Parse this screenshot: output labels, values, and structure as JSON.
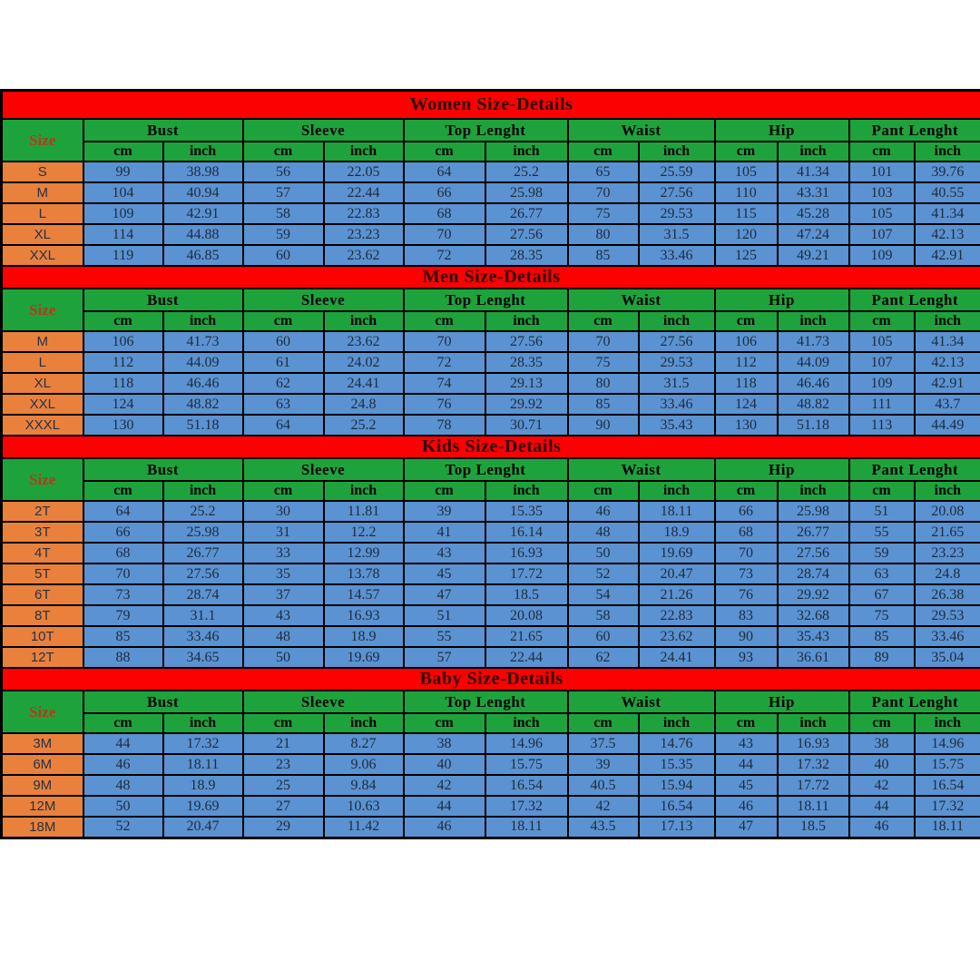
{
  "colors": {
    "band_red": "#fb0102",
    "header_green": "#1ea33c",
    "cell_blue": "#5b92d2",
    "label_orange": "#e9813d",
    "border_black": "#000000",
    "title_text": "#2e0400",
    "size_word_text": "#b03c1c",
    "value_text": "#1d2c3c"
  },
  "columns": {
    "size_label": "Size",
    "groups": [
      "Bust",
      "Sleeve",
      "Top Lenght",
      "Waist",
      "Hip",
      "Pant Lenght"
    ],
    "units": [
      "cm",
      "inch"
    ]
  },
  "chart_data": [
    {
      "type": "table",
      "id": "women",
      "title": "Women Size-Details",
      "column_groups": [
        "Bust",
        "Sleeve",
        "Top Lenght",
        "Waist",
        "Hip",
        "Pant Lenght"
      ],
      "unit_subcolumns": [
        "cm",
        "inch"
      ],
      "rows": [
        {
          "size": "S",
          "values": [
            "99",
            "38.98",
            "56",
            "22.05",
            "64",
            "25.2",
            "65",
            "25.59",
            "105",
            "41.34",
            "101",
            "39.76"
          ]
        },
        {
          "size": "M",
          "values": [
            "104",
            "40.94",
            "57",
            "22.44",
            "66",
            "25.98",
            "70",
            "27.56",
            "110",
            "43.31",
            "103",
            "40.55"
          ]
        },
        {
          "size": "L",
          "values": [
            "109",
            "42.91",
            "58",
            "22.83",
            "68",
            "26.77",
            "75",
            "29.53",
            "115",
            "45.28",
            "105",
            "41.34"
          ]
        },
        {
          "size": "XL",
          "values": [
            "114",
            "44.88",
            "59",
            "23.23",
            "70",
            "27.56",
            "80",
            "31.5",
            "120",
            "47.24",
            "107",
            "42.13"
          ]
        },
        {
          "size": "XXL",
          "values": [
            "119",
            "46.85",
            "60",
            "23.62",
            "72",
            "28.35",
            "85",
            "33.46",
            "125",
            "49.21",
            "109",
            "42.91"
          ]
        }
      ]
    },
    {
      "type": "table",
      "id": "men",
      "title": "Men Size-Details",
      "column_groups": [
        "Bust",
        "Sleeve",
        "Top Lenght",
        "Waist",
        "Hip",
        "Pant Lenght"
      ],
      "unit_subcolumns": [
        "cm",
        "inch"
      ],
      "rows": [
        {
          "size": "M",
          "values": [
            "106",
            "41.73",
            "60",
            "23.62",
            "70",
            "27.56",
            "70",
            "27.56",
            "106",
            "41.73",
            "105",
            "41.34"
          ]
        },
        {
          "size": "L",
          "values": [
            "112",
            "44.09",
            "61",
            "24.02",
            "72",
            "28.35",
            "75",
            "29.53",
            "112",
            "44.09",
            "107",
            "42.13"
          ]
        },
        {
          "size": "XL",
          "values": [
            "118",
            "46.46",
            "62",
            "24.41",
            "74",
            "29.13",
            "80",
            "31.5",
            "118",
            "46.46",
            "109",
            "42.91"
          ]
        },
        {
          "size": "XXL",
          "values": [
            "124",
            "48.82",
            "63",
            "24.8",
            "76",
            "29.92",
            "85",
            "33.46",
            "124",
            "48.82",
            "111",
            "43.7"
          ]
        },
        {
          "size": "XXXL",
          "values": [
            "130",
            "51.18",
            "64",
            "25.2",
            "78",
            "30.71",
            "90",
            "35.43",
            "130",
            "51.18",
            "113",
            "44.49"
          ]
        }
      ]
    },
    {
      "type": "table",
      "id": "kids",
      "title": "Kids Size-Details",
      "column_groups": [
        "Bust",
        "Sleeve",
        "Top Lenght",
        "Waist",
        "Hip",
        "Pant Lenght"
      ],
      "unit_subcolumns": [
        "cm",
        "inch"
      ],
      "rows": [
        {
          "size": "2T",
          "values": [
            "64",
            "25.2",
            "30",
            "11.81",
            "39",
            "15.35",
            "46",
            "18.11",
            "66",
            "25.98",
            "51",
            "20.08"
          ]
        },
        {
          "size": "3T",
          "values": [
            "66",
            "25.98",
            "31",
            "12.2",
            "41",
            "16.14",
            "48",
            "18.9",
            "68",
            "26.77",
            "55",
            "21.65"
          ]
        },
        {
          "size": "4T",
          "values": [
            "68",
            "26.77",
            "33",
            "12.99",
            "43",
            "16.93",
            "50",
            "19.69",
            "70",
            "27.56",
            "59",
            "23.23"
          ]
        },
        {
          "size": "5T",
          "values": [
            "70",
            "27.56",
            "35",
            "13.78",
            "45",
            "17.72",
            "52",
            "20.47",
            "73",
            "28.74",
            "63",
            "24.8"
          ]
        },
        {
          "size": "6T",
          "values": [
            "73",
            "28.74",
            "37",
            "14.57",
            "47",
            "18.5",
            "54",
            "21.26",
            "76",
            "29.92",
            "67",
            "26.38"
          ]
        },
        {
          "size": "8T",
          "values": [
            "79",
            "31.1",
            "43",
            "16.93",
            "51",
            "20.08",
            "58",
            "22.83",
            "83",
            "32.68",
            "75",
            "29.53"
          ]
        },
        {
          "size": "10T",
          "values": [
            "85",
            "33.46",
            "48",
            "18.9",
            "55",
            "21.65",
            "60",
            "23.62",
            "90",
            "35.43",
            "85",
            "33.46"
          ]
        },
        {
          "size": "12T",
          "values": [
            "88",
            "34.65",
            "50",
            "19.69",
            "57",
            "22.44",
            "62",
            "24.41",
            "93",
            "36.61",
            "89",
            "35.04"
          ]
        }
      ]
    },
    {
      "type": "table",
      "id": "baby",
      "title": "Baby Size-Details",
      "column_groups": [
        "Bust",
        "Sleeve",
        "Top Lenght",
        "Waist",
        "Hip",
        "Pant Lenght"
      ],
      "unit_subcolumns": [
        "cm",
        "inch"
      ],
      "rows": [
        {
          "size": "3M",
          "values": [
            "44",
            "17.32",
            "21",
            "8.27",
            "38",
            "14.96",
            "37.5",
            "14.76",
            "43",
            "16.93",
            "38",
            "14.96"
          ]
        },
        {
          "size": "6M",
          "values": [
            "46",
            "18.11",
            "23",
            "9.06",
            "40",
            "15.75",
            "39",
            "15.35",
            "44",
            "17.32",
            "40",
            "15.75"
          ]
        },
        {
          "size": "9M",
          "values": [
            "48",
            "18.9",
            "25",
            "9.84",
            "42",
            "16.54",
            "40.5",
            "15.94",
            "45",
            "17.72",
            "42",
            "16.54"
          ]
        },
        {
          "size": "12M",
          "values": [
            "50",
            "19.69",
            "27",
            "10.63",
            "44",
            "17.32",
            "42",
            "16.54",
            "46",
            "18.11",
            "44",
            "17.32"
          ]
        },
        {
          "size": "18M",
          "values": [
            "52",
            "20.47",
            "29",
            "11.42",
            "46",
            "18.11",
            "43.5",
            "17.13",
            "47",
            "18.5",
            "46",
            "18.11"
          ]
        }
      ]
    }
  ]
}
